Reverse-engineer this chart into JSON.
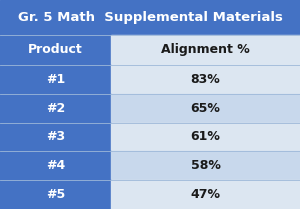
{
  "title": "Gr. 5 Math  Supplemental Materials",
  "title_bg": "#4472c4",
  "title_fg": "#ffffff",
  "header_labels": [
    "Product",
    "Alignment %"
  ],
  "header_bg": "#4472c4",
  "header_fg": "#ffffff",
  "rows": [
    {
      "product": "#1",
      "alignment": "83%"
    },
    {
      "product": "#2",
      "alignment": "65%"
    },
    {
      "product": "#3",
      "alignment": "61%"
    },
    {
      "product": "#4",
      "alignment": "58%"
    },
    {
      "product": "#5",
      "alignment": "47%"
    }
  ],
  "col1_bg": "#4472c4",
  "col2_bg_even": "#dce6f1",
  "col2_bg_odd": "#c8d8ec",
  "row_fg": "#ffffff",
  "data_fg": "#1a1a1a",
  "col_split": 0.37,
  "title_fontsize": 9.5,
  "header_fontsize": 9,
  "cell_fontsize": 9,
  "sep_color": "#9db8d9"
}
